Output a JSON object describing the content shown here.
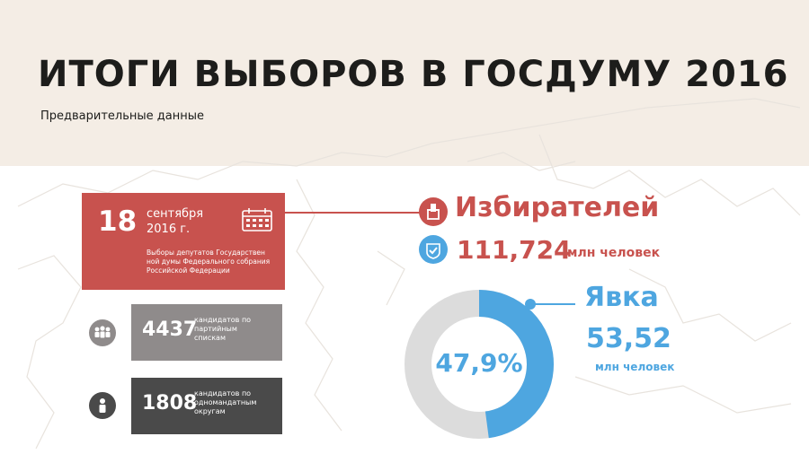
{
  "header": {
    "title": "ИТОГИ ВЫБОРОВ В ГОСДУМУ 2016",
    "subtitle": "Предварительные данные"
  },
  "date_card": {
    "day": "18",
    "month": "сентября",
    "year": "2016 г.",
    "description": "Выборы депутатов Государствен ной думы Федерального собрания Российской Федерации",
    "icon": "calendar-icon"
  },
  "voters": {
    "label": "Избирателей",
    "value": "111,724",
    "unit": "млн человек",
    "icons": [
      "ballot-box-icon",
      "check-icon"
    ]
  },
  "party_lists": {
    "value": "4437",
    "description": "кандидатов по партийным спискам",
    "icon": "group-icon"
  },
  "single_districts": {
    "value": "1808",
    "description": "кандидатов по одномандатным округам",
    "icon": "person-icon"
  },
  "turnout": {
    "label": "Явка",
    "value": "53,52",
    "unit": "млн человек",
    "percent_label": "47,9%",
    "percent": 47.9
  },
  "colors": {
    "header_bg": "#f4ede5",
    "red": "#c8524e",
    "blue": "#4ea6e0",
    "gray": "#8f8b8b",
    "dark": "#4a4a4a",
    "donut_track": "#dcdcdc"
  }
}
